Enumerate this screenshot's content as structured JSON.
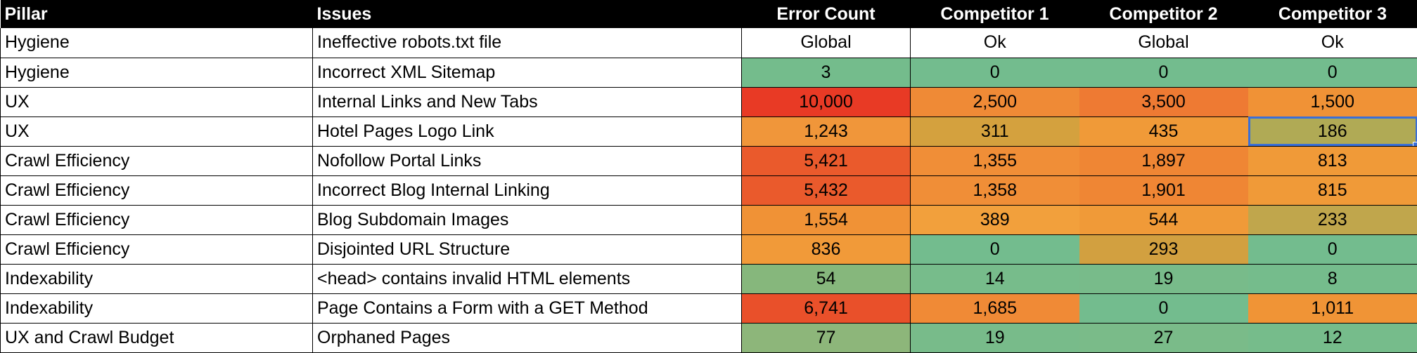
{
  "headers": {
    "pillar": "Pillar",
    "issues": "Issues",
    "error_count": "Error Count",
    "competitor_1": "Competitor 1",
    "competitor_2": "Competitor 2",
    "competitor_3": "Competitor 3"
  },
  "rows": [
    {
      "pillar": "Hygiene",
      "issue": "Ineffective robots.txt file",
      "error_count": "Global",
      "c1": "Ok",
      "c2": "Global",
      "c3": "Ok",
      "colors": {
        "error_count": "#ffffff",
        "c1": "#ffffff",
        "c2": "#ffffff",
        "c3": "#ffffff"
      }
    },
    {
      "pillar": "Hygiene",
      "issue": "Incorrect XML Sitemap",
      "error_count": "3",
      "c1": "0",
      "c2": "0",
      "c3": "0",
      "colors": {
        "error_count": "#74bc8c",
        "c1": "#73bc8e",
        "c2": "#73bc8e",
        "c3": "#73bc8e"
      }
    },
    {
      "pillar": "UX",
      "issue": "Internal Links and New Tabs",
      "error_count": "10,000",
      "c1": "2,500",
      "c2": "3,500",
      "c3": "1,500",
      "colors": {
        "error_count": "#e83a25",
        "c1": "#ef8a36",
        "c2": "#ee7a33",
        "c3": "#f09236"
      }
    },
    {
      "pillar": "UX",
      "issue": "Hotel Pages Logo Link",
      "error_count": "1,243",
      "c1": "311",
      "c2": "435",
      "c3": "186",
      "colors": {
        "error_count": "#f0963a",
        "c1": "#d4a13e",
        "c2": "#f09a38",
        "c3": "#b0aa55"
      }
    },
    {
      "pillar": "Crawl Efficiency",
      "issue": "Nofollow Portal Links",
      "error_count": "5,421",
      "c1": "1,355",
      "c2": "1,897",
      "c3": "813",
      "colors": {
        "error_count": "#ea5a2c",
        "c1": "#f08e37",
        "c2": "#ef8634",
        "c3": "#f09a38"
      }
    },
    {
      "pillar": "Crawl Efficiency",
      "issue": "Incorrect Blog Internal Linking",
      "error_count": "5,432",
      "c1": "1,358",
      "c2": "1,901",
      "c3": "815",
      "colors": {
        "error_count": "#ea5a2c",
        "c1": "#f08e37",
        "c2": "#ef8634",
        "c3": "#f09a38"
      }
    },
    {
      "pillar": "Crawl Efficiency",
      "issue": "Blog Subdomain Images",
      "error_count": "1,554",
      "c1": "389",
      "c2": "544",
      "c3": "233",
      "colors": {
        "error_count": "#f09236",
        "c1": "#f2a03c",
        "c2": "#f09a38",
        "c3": "#c0a64c"
      }
    },
    {
      "pillar": "Crawl Efficiency",
      "issue": "Disjointed URL Structure",
      "error_count": "836",
      "c1": "0",
      "c2": "293",
      "c3": "0",
      "colors": {
        "error_count": "#f19a39",
        "c1": "#73bc8e",
        "c2": "#d2a040",
        "c3": "#73bc8e"
      }
    },
    {
      "pillar": "Indexability",
      "issue": "<head> contains invalid HTML elements",
      "error_count": "54",
      "c1": "14",
      "c2": "19",
      "c3": "8",
      "colors": {
        "error_count": "#86b77c",
        "c1": "#77bc8b",
        "c2": "#78bb8a",
        "c3": "#75bc8c"
      }
    },
    {
      "pillar": "Indexability",
      "issue": "Page Contains a Form with a GET Method",
      "error_count": "6,741",
      "c1": "1,685",
      "c2": "0",
      "c3": "1,011",
      "colors": {
        "error_count": "#e9502a",
        "c1": "#f08a36",
        "c2": "#73bc8e",
        "c3": "#f09436"
      }
    },
    {
      "pillar": "UX and Crawl Budget",
      "issue": "Orphaned Pages",
      "error_count": "77",
      "c1": "19",
      "c2": "27",
      "c3": "12",
      "colors": {
        "error_count": "#8db67a",
        "c1": "#78bb8a",
        "c2": "#7abb89",
        "c3": "#76bc8b"
      }
    }
  ],
  "selected_cell": {
    "row": 3,
    "column": "c3"
  },
  "selection_color": "#3a6fd8"
}
